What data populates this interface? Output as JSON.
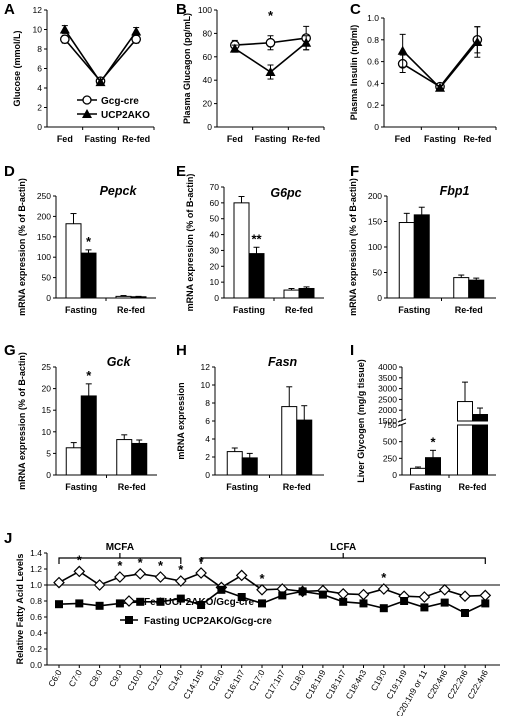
{
  "chart_data": [
    {
      "panel": "A",
      "type": "line",
      "ylabel": "Glucose (mmol/L)",
      "categories": [
        "Fed",
        "Fasting",
        "Re-fed"
      ],
      "ylim": [
        0,
        12
      ],
      "yticks": [
        0,
        2,
        4,
        6,
        8,
        10,
        12
      ],
      "series": [
        {
          "name": "Gcg-cre",
          "marker": "open-circle",
          "values": [
            9.0,
            4.7,
            9.0
          ],
          "err": [
            0.4,
            0.3,
            0.4
          ]
        },
        {
          "name": "UCP2AKO",
          "marker": "filled-triangle",
          "values": [
            10.0,
            4.6,
            9.8
          ],
          "err": [
            0.4,
            0.3,
            0.4
          ]
        }
      ],
      "legend": "bottom-right",
      "stars": []
    },
    {
      "panel": "B",
      "type": "line",
      "ylabel": "Plasma Glucagon (pg/mL)",
      "categories": [
        "Fed",
        "Fasting",
        "Re-fed"
      ],
      "ylim": [
        0,
        100
      ],
      "yticks": [
        0,
        20,
        40,
        60,
        80,
        100
      ],
      "series": [
        {
          "marker": "open-circle",
          "values": [
            70,
            72,
            76
          ],
          "err": [
            4,
            6,
            10
          ]
        },
        {
          "marker": "filled-triangle",
          "values": [
            67,
            47,
            72
          ],
          "err": [
            3,
            6,
            6
          ]
        }
      ],
      "stars": [
        {
          "index": 1,
          "text": "*"
        }
      ]
    },
    {
      "panel": "C",
      "type": "line",
      "ylabel": "Plasma Insulin (ng/ml)",
      "categories": [
        "Fed",
        "Fasting",
        "Re-fed"
      ],
      "ylim": [
        0,
        1
      ],
      "yticks": [
        0,
        0.2,
        0.4,
        0.6,
        0.8,
        1.0
      ],
      "yticklabels": [
        "0",
        "0.2",
        "0.4",
        "0.6",
        "0.8",
        "1.0"
      ],
      "series": [
        {
          "marker": "open-circle",
          "values": [
            0.58,
            0.37,
            0.8
          ],
          "err": [
            0.08,
            0.02,
            0.12
          ]
        },
        {
          "marker": "filled-triangle",
          "values": [
            0.7,
            0.36,
            0.78
          ],
          "err": [
            0.15,
            0.02,
            0.14
          ]
        }
      ],
      "stars": []
    },
    {
      "panel": "D",
      "type": "bar",
      "title": "Pepck",
      "ylabel": "mRNA expression (% of B-actin)",
      "categories": [
        "Fasting",
        "Re-fed"
      ],
      "ylim": [
        0,
        250
      ],
      "yticks": [
        0,
        50,
        100,
        150,
        200,
        250
      ],
      "series": [
        {
          "fill": "#ffffff",
          "values": [
            182,
            4
          ],
          "err": [
            25,
            2
          ]
        },
        {
          "fill": "#000000",
          "values": [
            110,
            3
          ],
          "err": [
            8,
            1
          ]
        }
      ],
      "stars": [
        {
          "index": 0,
          "text": "*"
        }
      ]
    },
    {
      "panel": "E",
      "type": "bar",
      "title": "G6pc",
      "ylabel": "mRNA expression (% of B-actin)",
      "categories": [
        "Fasting",
        "Re-fed"
      ],
      "ylim": [
        0,
        70
      ],
      "yticks": [
        0,
        10,
        20,
        30,
        40,
        50,
        60,
        70
      ],
      "series": [
        {
          "fill": "#ffffff",
          "values": [
            60,
            5
          ],
          "err": [
            4,
            1
          ]
        },
        {
          "fill": "#000000",
          "values": [
            28,
            6
          ],
          "err": [
            4,
            1
          ]
        }
      ],
      "stars": [
        {
          "index": 0,
          "text": "**"
        }
      ]
    },
    {
      "panel": "F",
      "type": "bar",
      "title": "Fbp1",
      "ylabel": "mRNA expression (% of B-actin)",
      "categories": [
        "Fasting",
        "Re-fed"
      ],
      "ylim": [
        0,
        200
      ],
      "yticks": [
        0,
        50,
        100,
        150,
        200
      ],
      "series": [
        {
          "fill": "#ffffff",
          "values": [
            148,
            40
          ],
          "err": [
            18,
            5
          ]
        },
        {
          "fill": "#000000",
          "values": [
            163,
            35
          ],
          "err": [
            15,
            4
          ]
        }
      ],
      "stars": []
    },
    {
      "panel": "G",
      "type": "bar",
      "title": "Gck",
      "ylabel": "mRNA expression (% of B-actin)",
      "categories": [
        "Fasting",
        "Re-fed"
      ],
      "ylim": [
        0,
        25
      ],
      "yticks": [
        0,
        5,
        10,
        15,
        20,
        25
      ],
      "series": [
        {
          "fill": "#ffffff",
          "values": [
            6.3,
            8.2
          ],
          "err": [
            1.2,
            1.1
          ]
        },
        {
          "fill": "#000000",
          "values": [
            18.3,
            7.3
          ],
          "err": [
            2.8,
            0.8
          ]
        }
      ],
      "stars": [
        {
          "index": 0,
          "text": "*"
        }
      ]
    },
    {
      "panel": "H",
      "type": "bar",
      "title": "Fasn",
      "ylabel": "mRNA expression",
      "categories": [
        "Fasting",
        "Re-fed"
      ],
      "ylim": [
        0,
        12
      ],
      "yticks": [
        0,
        2,
        4,
        6,
        8,
        10,
        12
      ],
      "series": [
        {
          "fill": "#ffffff",
          "values": [
            2.6,
            7.6
          ],
          "err": [
            0.4,
            2.2
          ]
        },
        {
          "fill": "#000000",
          "values": [
            1.9,
            6.1
          ],
          "err": [
            0.5,
            1.6
          ]
        }
      ],
      "stars": []
    },
    {
      "panel": "I",
      "type": "bar",
      "ylabel": "Liver Glycogen (mg/g tissue)",
      "categories": [
        "Fasting",
        "Re-fed"
      ],
      "broken_axis": true,
      "yticks_upper": [
        1500,
        2000,
        2500,
        3000,
        3500,
        4000
      ],
      "yticks_lower": [
        0,
        250,
        500,
        750
      ],
      "series": [
        {
          "fill": "#ffffff",
          "values": [
            100,
            2400
          ],
          "err": [
            20,
            900
          ]
        },
        {
          "fill": "#000000",
          "values": [
            260,
            1800
          ],
          "err": [
            110,
            300
          ]
        }
      ],
      "stars": [
        {
          "index": 0,
          "text": "*"
        }
      ]
    },
    {
      "panel": "J",
      "type": "line",
      "ylabel": "Relative Fatty Acid Levels",
      "ylim": [
        0.0,
        1.4
      ],
      "yticks": [
        0.0,
        0.2,
        0.4,
        0.6,
        0.8,
        1.0,
        1.2,
        1.4
      ],
      "yticklabels": [
        "0.0",
        "0.2",
        "0.4",
        "0.6",
        "0.8",
        "1.0",
        "1.2",
        "1.4"
      ],
      "reference_line": 1.0,
      "categories": [
        "C6:0",
        "C7:0",
        "C8:0",
        "C9:0",
        "C10:0",
        "C12:0",
        "C14:0",
        "C14:1n5",
        "C16:0",
        "C16:1n7",
        "C17:0",
        "C17:1n7",
        "C18:0",
        "C18:1n9",
        "C18:1n7",
        "C18:4n3",
        "C19:0",
        "C19:1n9",
        "C20:1n9 or 11",
        "C20:4n6",
        "C22:2n6",
        "C22:4n6"
      ],
      "groups": [
        {
          "label": "MCFA",
          "from": 0,
          "to": 6
        },
        {
          "label": "LCFA",
          "from": 7,
          "to": 21
        }
      ],
      "series": [
        {
          "name": "Fed UCP2AKO/Gcg-cre",
          "marker": "open-diamond",
          "values": [
            1.03,
            1.17,
            1.0,
            1.1,
            1.14,
            1.1,
            1.05,
            1.15,
            0.97,
            1.12,
            0.94,
            0.95,
            0.92,
            0.93,
            0.89,
            0.88,
            0.95,
            0.86,
            0.85,
            0.94,
            0.86,
            0.87
          ]
        },
        {
          "name": "Fasting UCP2AKO/Gcg-cre",
          "marker": "filled-square",
          "values": [
            0.76,
            0.77,
            0.74,
            0.77,
            0.79,
            0.79,
            0.83,
            0.75,
            0.94,
            0.85,
            0.77,
            0.87,
            0.92,
            0.88,
            0.79,
            0.77,
            0.71,
            0.8,
            0.72,
            0.78,
            0.65,
            0.77
          ]
        }
      ],
      "stars": [
        {
          "index": 1,
          "text": "*"
        },
        {
          "index": 3,
          "text": "*"
        },
        {
          "index": 4,
          "text": "*"
        },
        {
          "index": 5,
          "text": "*"
        },
        {
          "index": 6,
          "text": "*"
        },
        {
          "index": 7,
          "text": "*"
        },
        {
          "index": 10,
          "text": "*"
        },
        {
          "index": 16,
          "text": "*"
        }
      ],
      "legend": "bottom-left"
    }
  ]
}
